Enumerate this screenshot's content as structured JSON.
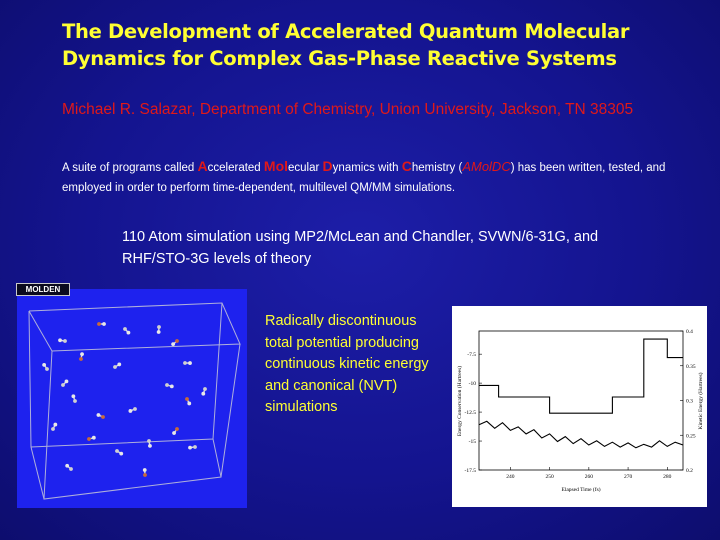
{
  "slide": {
    "title": "The Development of Accelerated Quantum Molecular Dynamics for Complex Gas-Phase Reactive Systems",
    "author": "Michael R. Salazar, Department of Chemistry, Union University, Jackson, TN 38305",
    "description": {
      "t1": "A suite of programs called ",
      "a_big": "A",
      "t2": "ccelerated ",
      "mol_big": "Mol",
      "t3": "ecular ",
      "d_big": "D",
      "t4": "ynamics with ",
      "c_big": "C",
      "t5": "hemistry (",
      "acronym": "AMolDC",
      "t6": ") has been written, tested, and employed in order to perform time-dependent, multilevel QM/MM simulations."
    },
    "simulation_text": "110 Atom simulation using MP2/McLean and Chandler, SVWN/6-31G, and RHF/STO-3G levels of theory",
    "caption": "Radically discontinuous total potential producing continuous kinetic energy and canonical (NVT) simulations",
    "image_tag": "MOLDEN"
  },
  "colors": {
    "title": "#ffff33",
    "author": "#e01919",
    "background": "#14148f",
    "sim_panel": "#1e22ee"
  },
  "chart_data": {
    "type": "line",
    "xlabel": "Elapsed Time (fs)",
    "ylabel": "Energy Conservation (Hartrees)",
    "y2label": "Kinetic Energy (Hartrees)",
    "xlim": [
      232,
      284
    ],
    "x_ticks": [
      240,
      250,
      260,
      270,
      280
    ],
    "ylim": [
      -17.5,
      -5.5
    ],
    "y_ticks": [
      -7.5,
      -10,
      -12.5,
      -15,
      -17.5
    ],
    "y2lim": [
      0.2,
      0.4
    ],
    "y2_ticks": [
      0.4,
      0.35,
      0.3,
      0.25,
      0.2
    ],
    "series": [
      {
        "axis": "left",
        "style": "step",
        "points": [
          [
            232,
            -10.2
          ],
          [
            237,
            -10.2
          ],
          [
            237,
            -11.2
          ],
          [
            250,
            -11.2
          ],
          [
            250,
            -12.6
          ],
          [
            266,
            -12.6
          ],
          [
            266,
            -11.2
          ],
          [
            274,
            -11.2
          ],
          [
            274,
            -6.2
          ],
          [
            280,
            -6.2
          ],
          [
            280,
            -7.8
          ],
          [
            284,
            -7.8
          ]
        ]
      },
      {
        "axis": "right",
        "style": "smooth",
        "points": [
          [
            232,
            0.265
          ],
          [
            234,
            0.27
          ],
          [
            236,
            0.26
          ],
          [
            238,
            0.268
          ],
          [
            240,
            0.257
          ],
          [
            242,
            0.262
          ],
          [
            244,
            0.252
          ],
          [
            246,
            0.258
          ],
          [
            248,
            0.246
          ],
          [
            250,
            0.252
          ],
          [
            252,
            0.241
          ],
          [
            254,
            0.248
          ],
          [
            256,
            0.238
          ],
          [
            258,
            0.245
          ],
          [
            260,
            0.236
          ],
          [
            262,
            0.242
          ],
          [
            264,
            0.234
          ],
          [
            266,
            0.24
          ],
          [
            268,
            0.233
          ],
          [
            270,
            0.239
          ],
          [
            272,
            0.232
          ],
          [
            274,
            0.237
          ],
          [
            276,
            0.233
          ],
          [
            278,
            0.242
          ],
          [
            280,
            0.234
          ],
          [
            282,
            0.24
          ],
          [
            284,
            0.236
          ]
        ]
      }
    ]
  }
}
